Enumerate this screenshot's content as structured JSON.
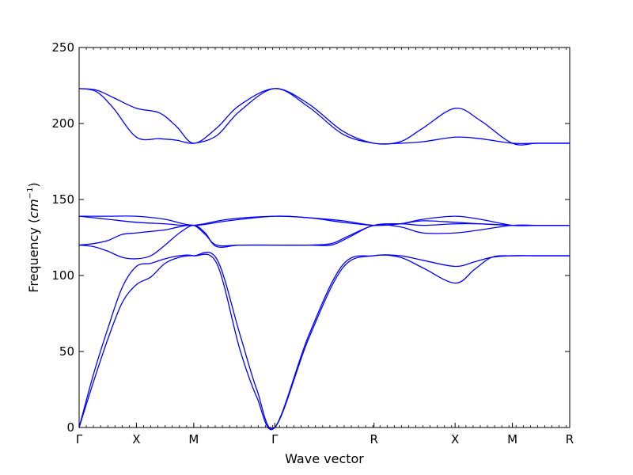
{
  "chart_data": {
    "type": "line",
    "title": "",
    "xlabel": "Wave vector",
    "ylabel_prefix": "Frequency (",
    "ylabel_unit_base": "cm",
    "ylabel_unit_exp": "−1",
    "ylabel_suffix": ")",
    "ylim": [
      0,
      250
    ],
    "yticks": [
      0,
      50,
      100,
      150,
      200,
      250
    ],
    "grid": false,
    "line_color": "#0000ff",
    "path_points": [
      {
        "label": "Γ",
        "x": 0.0
      },
      {
        "label": "X",
        "x": 0.5
      },
      {
        "label": "M",
        "x": 1.0
      },
      {
        "label": "Γ",
        "x": 1.7071
      },
      {
        "label": "R",
        "x": 2.5731
      },
      {
        "label": "X",
        "x": 3.2802
      },
      {
        "label": "M",
        "x": 3.7802
      },
      {
        "label": "R",
        "x": 4.2802
      }
    ],
    "series": [
      {
        "x": [
          0,
          0.125,
          0.25,
          0.375,
          0.5,
          0.625,
          0.75,
          0.875,
          1.0,
          1.2,
          1.4,
          1.55,
          1.7071,
          2.0,
          2.3,
          2.5731,
          2.8,
          3.0,
          3.2802,
          3.45,
          3.6,
          3.7802,
          4.0,
          4.2802
        ],
        "values": [
          0,
          30,
          58,
          82,
          94,
          99,
          108,
          112,
          113,
          111,
          62,
          25,
          0,
          58,
          105,
          113,
          112,
          105,
          95,
          104,
          112,
          113,
          113,
          113
        ]
      },
      {
        "x": [
          0,
          0.125,
          0.25,
          0.375,
          0.5,
          0.625,
          0.75,
          0.875,
          1.0,
          1.2,
          1.4,
          1.55,
          1.7071,
          2.0,
          2.3,
          2.5731,
          2.8,
          3.0,
          3.2802,
          3.45,
          3.6,
          3.7802,
          4.0,
          4.2802
        ],
        "values": [
          0,
          35,
          65,
          92,
          106,
          108,
          111,
          113,
          113,
          108,
          52,
          20,
          0,
          60,
          107,
          113,
          113,
          110,
          106,
          109,
          112,
          113,
          113,
          113
        ]
      },
      {
        "x": [
          0,
          0.125,
          0.25,
          0.375,
          0.5,
          0.625,
          0.75,
          0.875,
          1.0,
          1.1,
          1.2,
          1.4,
          1.7071,
          2.0,
          2.2,
          2.35,
          2.5731,
          2.8,
          3.0,
          3.2802,
          3.5,
          3.7802,
          4.0,
          4.2802
        ],
        "values": [
          120,
          119,
          116,
          112,
          111,
          113,
          120,
          128,
          133,
          128,
          119,
          120,
          120,
          120,
          120,
          125,
          133,
          132,
          128,
          128,
          130,
          133,
          133,
          133
        ]
      },
      {
        "x": [
          0,
          0.125,
          0.25,
          0.375,
          0.5,
          0.625,
          0.75,
          0.875,
          1.0,
          1.1,
          1.2,
          1.4,
          1.7071,
          2.0,
          2.2,
          2.35,
          2.5731,
          2.8,
          3.0,
          3.2802,
          3.5,
          3.7802,
          4.0,
          4.2802
        ],
        "values": [
          120,
          121,
          123,
          127,
          128,
          129,
          130,
          132,
          133,
          127,
          120,
          120,
          120,
          120,
          121,
          126,
          133,
          134,
          133,
          134,
          134,
          133,
          133,
          133
        ]
      },
      {
        "x": [
          0,
          0.25,
          0.5,
          0.75,
          1.0,
          1.3,
          1.7071,
          2.0,
          2.3,
          2.5731,
          2.8,
          3.0,
          3.2802,
          3.5,
          3.7802,
          4.0,
          4.2802
        ],
        "values": [
          139,
          137,
          135,
          134,
          133,
          137,
          139,
          138,
          135,
          133,
          134,
          136,
          135,
          134,
          133,
          133,
          133
        ]
      },
      {
        "x": [
          0,
          0.25,
          0.5,
          0.75,
          1.0,
          1.3,
          1.7071,
          2.0,
          2.3,
          2.5731,
          2.8,
          3.0,
          3.2802,
          3.5,
          3.7802,
          4.0,
          4.2802
        ],
        "values": [
          139,
          139,
          139,
          137,
          133,
          136,
          139,
          138,
          136,
          133,
          134,
          137,
          139,
          137,
          133,
          133,
          133
        ]
      },
      {
        "x": [
          0,
          0.15,
          0.3,
          0.5,
          0.7,
          0.85,
          1.0,
          1.2,
          1.4,
          1.7071,
          2.0,
          2.3,
          2.5731,
          2.8,
          3.0,
          3.2802,
          3.5,
          3.7802,
          4.0,
          4.2802
        ],
        "values": [
          223,
          221,
          210,
          191,
          190,
          189,
          187,
          192,
          208,
          223,
          211,
          193,
          187,
          187,
          188,
          191,
          190,
          187,
          187,
          187
        ]
      },
      {
        "x": [
          0,
          0.15,
          0.3,
          0.5,
          0.7,
          0.85,
          1.0,
          1.2,
          1.4,
          1.7071,
          2.0,
          2.3,
          2.5731,
          2.8,
          3.0,
          3.2802,
          3.5,
          3.7802,
          4.0,
          4.2802
        ],
        "values": [
          223,
          222,
          217,
          210,
          207,
          198,
          187,
          197,
          212,
          223,
          213,
          195,
          187,
          188,
          197,
          210,
          202,
          187,
          187,
          187
        ]
      }
    ]
  }
}
